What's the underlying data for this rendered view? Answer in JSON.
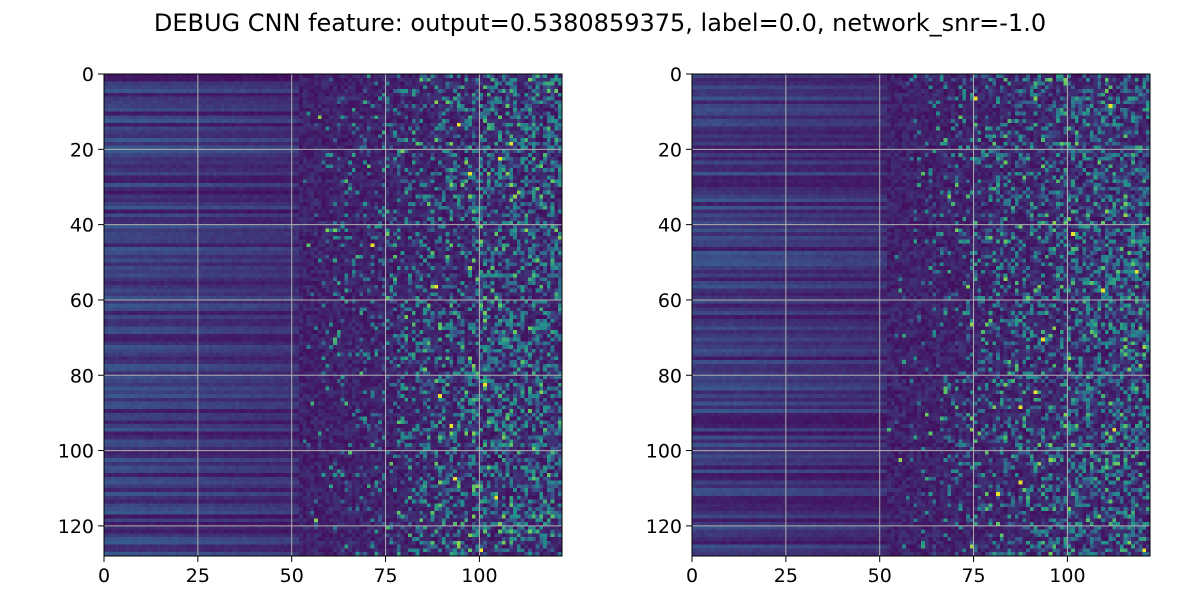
{
  "figure": {
    "title": "DEBUG CNN feature: output=0.5380859375, label=0.0, network_snr=-1.0"
  },
  "chart_data": [
    {
      "type": "heatmap",
      "panel": "left",
      "title": "",
      "xlabel": "",
      "ylabel": "",
      "xlim": [
        0,
        122
      ],
      "ylim": [
        128,
        0
      ],
      "x_ticks": [
        "0",
        "25",
        "50",
        "75",
        "100"
      ],
      "x_tick_values": [
        0,
        25,
        50,
        75,
        100
      ],
      "y_ticks": [
        "0",
        "20",
        "40",
        "60",
        "80",
        "100",
        "120"
      ],
      "y_tick_values": [
        0,
        20,
        40,
        60,
        80,
        100,
        120
      ],
      "grid": true,
      "colormap": "viridis",
      "n_rows": 128,
      "n_cols": 122,
      "bright_pixels": [
        [
          13,
          94
        ],
        [
          18,
          108
        ],
        [
          22,
          105
        ],
        [
          26,
          97
        ],
        [
          45,
          71
        ],
        [
          56,
          88
        ],
        [
          82,
          101
        ],
        [
          85,
          89
        ],
        [
          93,
          92
        ],
        [
          107,
          93
        ],
        [
          112,
          104
        ],
        [
          126,
          100
        ]
      ]
    },
    {
      "type": "heatmap",
      "panel": "right",
      "title": "",
      "xlabel": "",
      "ylabel": "",
      "xlim": [
        0,
        122
      ],
      "ylim": [
        128,
        0
      ],
      "x_ticks": [
        "0",
        "25",
        "50",
        "75",
        "100"
      ],
      "x_tick_values": [
        0,
        25,
        50,
        75,
        100
      ],
      "y_ticks": [
        "0",
        "20",
        "40",
        "60",
        "80",
        "100",
        "120"
      ],
      "y_tick_values": [
        0,
        20,
        40,
        60,
        80,
        100,
        120
      ],
      "grid": true,
      "colormap": "viridis",
      "n_rows": 128,
      "n_cols": 122,
      "bright_pixels": [
        [
          6,
          75
        ],
        [
          8,
          111
        ],
        [
          42,
          101
        ],
        [
          52,
          118
        ],
        [
          57,
          109
        ],
        [
          70,
          93
        ],
        [
          84,
          91
        ],
        [
          88,
          87
        ],
        [
          94,
          112
        ],
        [
          108,
          87
        ],
        [
          111,
          81
        ],
        [
          126,
          120
        ]
      ]
    }
  ]
}
